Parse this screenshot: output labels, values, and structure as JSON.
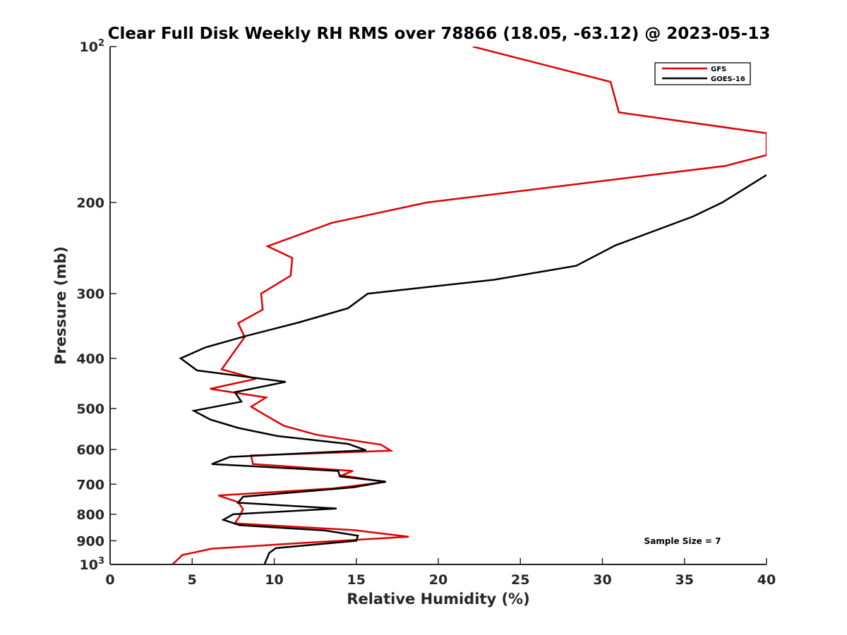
{
  "chart_data": {
    "type": "line",
    "title": "Clear Full Disk Weekly RH RMS over 78866 (18.05, -63.12) @ 2023-05-13",
    "xlabel": "Relative Humidity (%)",
    "ylabel": "Pressure (mb)",
    "xlim": [
      0,
      40
    ],
    "ylim": [
      100,
      1000
    ],
    "y_scale": "log",
    "y_reversed": true,
    "grid": false,
    "legend_position": "top-right",
    "x_ticks": [
      "0",
      "5",
      "10",
      "15",
      "20",
      "25",
      "30",
      "35",
      "40"
    ],
    "x_tick_values": [
      0,
      5,
      10,
      15,
      20,
      25,
      30,
      35,
      40
    ],
    "y_tick_values": [
      100,
      200,
      300,
      400,
      500,
      600,
      700,
      800,
      900,
      1000
    ],
    "y_tick_labels": [
      {
        "base": "10",
        "exp": "2"
      },
      {
        "base": "200",
        "exp": ""
      },
      {
        "base": "300",
        "exp": ""
      },
      {
        "base": "400",
        "exp": ""
      },
      {
        "base": "500",
        "exp": ""
      },
      {
        "base": "600",
        "exp": ""
      },
      {
        "base": "700",
        "exp": ""
      },
      {
        "base": "800",
        "exp": ""
      },
      {
        "base": "900",
        "exp": ""
      },
      {
        "base": "10",
        "exp": "3"
      }
    ],
    "series": [
      {
        "name": "GFS",
        "color": "#e00000",
        "points": [
          [
            22.1,
            100
          ],
          [
            30.5,
            117
          ],
          [
            31.0,
            134
          ],
          [
            40.0,
            147
          ],
          [
            40.0,
            162
          ],
          [
            37.5,
            170
          ],
          [
            19.3,
            200
          ],
          [
            13.5,
            219
          ],
          [
            9.6,
            243
          ],
          [
            11.1,
            256
          ],
          [
            11.0,
            277
          ],
          [
            9.2,
            300
          ],
          [
            9.3,
            322
          ],
          [
            7.8,
            342
          ],
          [
            8.2,
            364
          ],
          [
            6.8,
            420
          ],
          [
            8.9,
            438
          ],
          [
            6.1,
            458
          ],
          [
            9.5,
            476
          ],
          [
            8.6,
            496
          ],
          [
            9.6,
            518
          ],
          [
            10.6,
            540
          ],
          [
            12.6,
            562
          ],
          [
            16.5,
            587
          ],
          [
            17.1,
            603
          ],
          [
            8.6,
            616
          ],
          [
            8.7,
            640
          ],
          [
            14.8,
            660
          ],
          [
            14.1,
            673
          ],
          [
            16.8,
            693
          ],
          [
            13.6,
            713
          ],
          [
            6.6,
            736
          ],
          [
            7.8,
            758
          ],
          [
            8.1,
            782
          ],
          [
            7.9,
            806
          ],
          [
            7.6,
            833
          ],
          [
            14.8,
            858
          ],
          [
            18.2,
            884
          ],
          [
            12.2,
            907
          ],
          [
            6.2,
            932
          ],
          [
            4.4,
            959
          ],
          [
            3.8,
            1000
          ]
        ]
      },
      {
        "name": "GOES-16",
        "color": "#000000",
        "points": [
          [
            40.0,
            177
          ],
          [
            37.3,
            200
          ],
          [
            35.5,
            213
          ],
          [
            30.8,
            242
          ],
          [
            28.4,
            265
          ],
          [
            23.4,
            282
          ],
          [
            15.7,
            300
          ],
          [
            14.5,
            320
          ],
          [
            11.5,
            341
          ],
          [
            8.3,
            362
          ],
          [
            5.8,
            381
          ],
          [
            4.3,
            400
          ],
          [
            5.3,
            422
          ],
          [
            10.7,
            444
          ],
          [
            7.6,
            465
          ],
          [
            8.0,
            485
          ],
          [
            5.1,
            505
          ],
          [
            6.1,
            525
          ],
          [
            7.8,
            545
          ],
          [
            10.2,
            565
          ],
          [
            14.5,
            585
          ],
          [
            15.6,
            602
          ],
          [
            7.3,
            620
          ],
          [
            6.2,
            640
          ],
          [
            13.9,
            660
          ],
          [
            14.0,
            676
          ],
          [
            16.8,
            692
          ],
          [
            14.8,
            710
          ],
          [
            8.1,
            740
          ],
          [
            7.8,
            760
          ],
          [
            13.8,
            780
          ],
          [
            7.5,
            800
          ],
          [
            6.9,
            820
          ],
          [
            7.9,
            840
          ],
          [
            13.1,
            860
          ],
          [
            15.1,
            880
          ],
          [
            15.0,
            900
          ],
          [
            10.1,
            930
          ],
          [
            9.7,
            950
          ],
          [
            9.4,
            1000
          ]
        ]
      }
    ],
    "annotation": "Sample Size = 7"
  }
}
